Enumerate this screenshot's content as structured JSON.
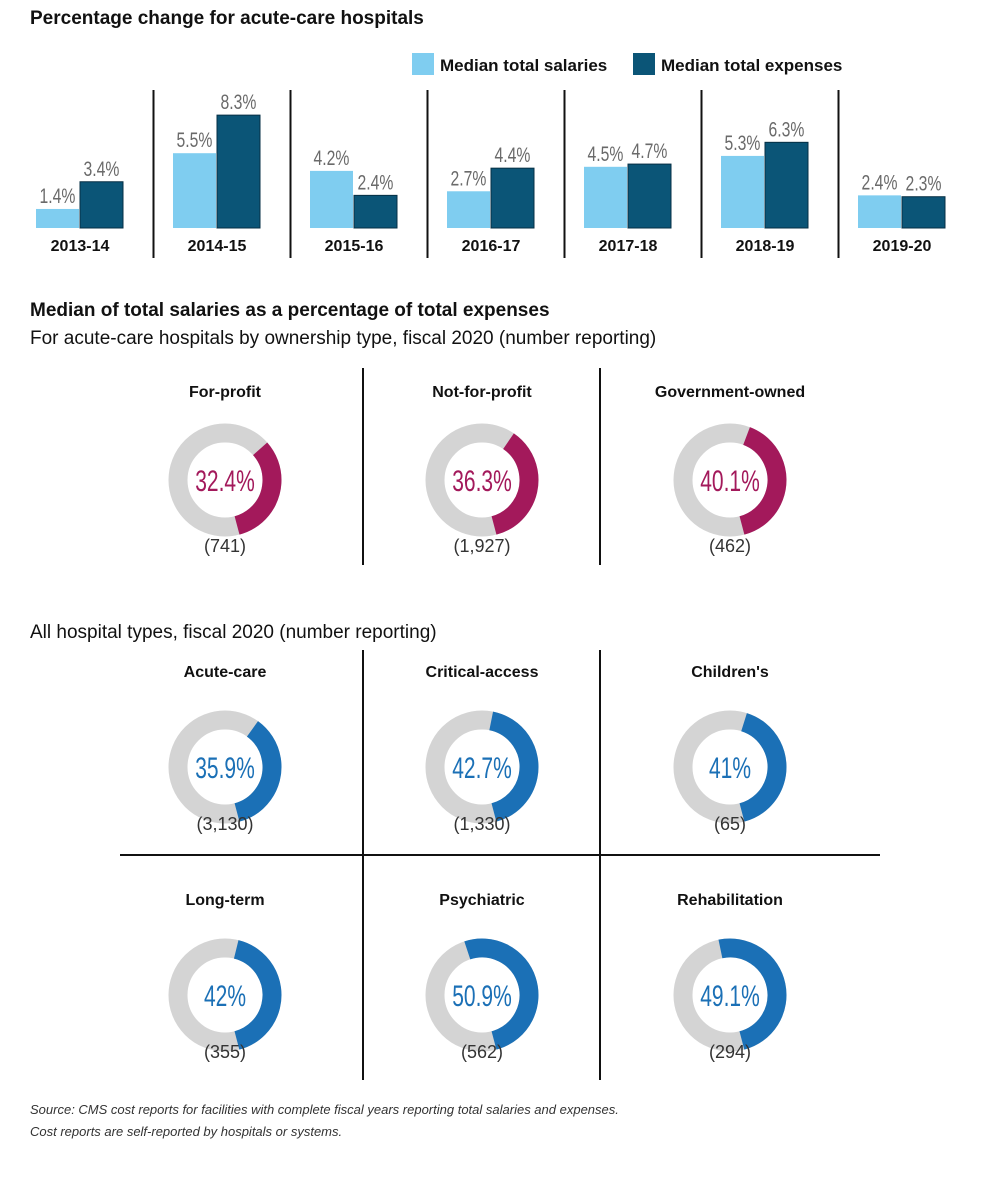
{
  "chart_data": [
    {
      "type": "bar",
      "title": "Percentage change for acute-care hospitals",
      "categories": [
        "2013-14",
        "2014-15",
        "2015-16",
        "2016-17",
        "2017-18",
        "2018-19",
        "2019-20"
      ],
      "series": [
        {
          "name": "Median total salaries",
          "values": [
            1.4,
            5.5,
            4.2,
            2.7,
            4.5,
            5.3,
            2.4
          ],
          "labels": [
            "1.4%",
            "5.5%",
            "4.2%",
            "2.7%",
            "4.5%",
            "5.3%",
            "2.4%"
          ],
          "color": "#7fcdf0"
        },
        {
          "name": "Median total expenses",
          "values": [
            3.4,
            8.3,
            2.4,
            4.4,
            4.7,
            6.3,
            2.3
          ],
          "labels": [
            "3.4%",
            "8.3%",
            "2.4%",
            "4.4%",
            "4.7%",
            "6.3%",
            "2.3%"
          ],
          "color": "#0b5577"
        }
      ],
      "legend": "top-right"
    },
    {
      "type": "pie",
      "title": "Median of total salaries as a percentage of total expenses",
      "subtitle": "For acute-care hospitals by ownership type, fiscal 2020 (number reporting)",
      "color": "#a3195b",
      "rest_color": "#d4d4d4",
      "items": [
        {
          "name": "For-profit",
          "value": 32.4,
          "label": "32.4%",
          "count": "(741)"
        },
        {
          "name": "Not-for-profit",
          "value": 36.3,
          "label": "36.3%",
          "count": "(1,927)"
        },
        {
          "name": "Government-owned",
          "value": 40.1,
          "label": "40.1%",
          "count": "(462)"
        }
      ]
    },
    {
      "type": "pie",
      "subtitle": "All hospital types, fiscal 2020 (number reporting)",
      "color": "#1b70b6",
      "rest_color": "#d4d4d4",
      "items": [
        {
          "name": "Acute-care",
          "value": 35.9,
          "label": "35.9%",
          "count": "(3,130)"
        },
        {
          "name": "Critical-access",
          "value": 42.7,
          "label": "42.7%",
          "count": "(1,330)"
        },
        {
          "name": "Children's",
          "value": 41,
          "label": "41%",
          "count": "(65)"
        },
        {
          "name": "Long-term",
          "value": 42,
          "label": "42%",
          "count": "(355)"
        },
        {
          "name": "Psychiatric",
          "value": 50.9,
          "label": "50.9%",
          "count": "(562)"
        },
        {
          "name": "Rehabilitation",
          "value": 49.1,
          "label": "49.1%",
          "count": "(294)"
        }
      ]
    }
  ],
  "source": [
    "Source: CMS cost reports for facilities with complete fiscal years reporting total salaries and expenses.",
    "Cost reports are self-reported by hospitals or systems."
  ]
}
